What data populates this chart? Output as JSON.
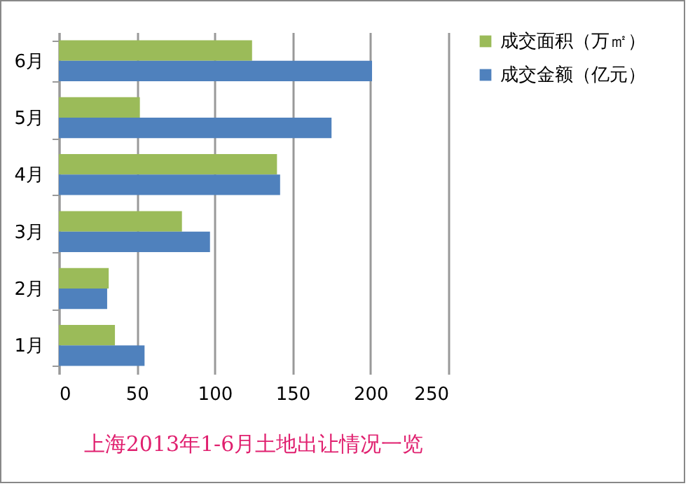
{
  "chart_data": {
    "type": "bar",
    "orientation": "horizontal",
    "title": "上海2013年1-6月土地出让情况一览",
    "categories": [
      "6月",
      "5月",
      "4月",
      "3月",
      "2月",
      "1月"
    ],
    "series": [
      {
        "name": "成交面积（万㎡）",
        "color": "#9bbb59",
        "values": [
          124,
          52,
          140,
          79,
          32,
          36
        ]
      },
      {
        "name": "成交金额（亿元）",
        "color": "#4f81bd",
        "values": [
          201,
          175,
          142,
          97,
          31,
          55
        ]
      }
    ],
    "xlim": [
      0,
      250
    ],
    "xticks": [
      0,
      50,
      100,
      150,
      200,
      250
    ],
    "grid": "x",
    "legend": "right"
  }
}
